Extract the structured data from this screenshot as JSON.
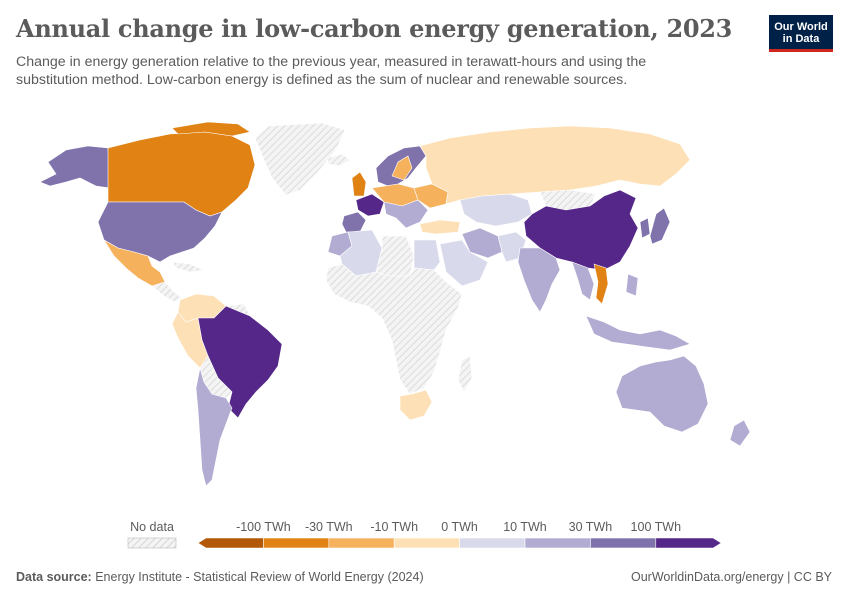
{
  "header": {
    "title": "Annual change in low-carbon energy generation, 2023",
    "subtitle": "Change in energy generation relative to the previous year, measured in terawatt-hours and using the substitution method. Low-carbon energy is defined as the sum of nuclear and renewable sources."
  },
  "logo": {
    "line1": "Our World",
    "line2": "in Data"
  },
  "legend": {
    "no_data_label": "No data",
    "tick_labels": [
      "-100 TWh",
      "-30 TWh",
      "-10 TWh",
      "0 TWh",
      "10 TWh",
      "30 TWh",
      "100 TWh"
    ],
    "colors": [
      "#b35806",
      "#e08214",
      "#f6b15d",
      "#fee0b6",
      "#d8daeb",
      "#b2abd2",
      "#8073ac",
      "#542788"
    ],
    "no_data_color": "#f0f0f0"
  },
  "footer": {
    "source_label": "Data source:",
    "source_text": "Energy Institute - Statistical Review of World Energy (2024)",
    "site_text": "OurWorldinData.org/energy | CC BY"
  }
}
